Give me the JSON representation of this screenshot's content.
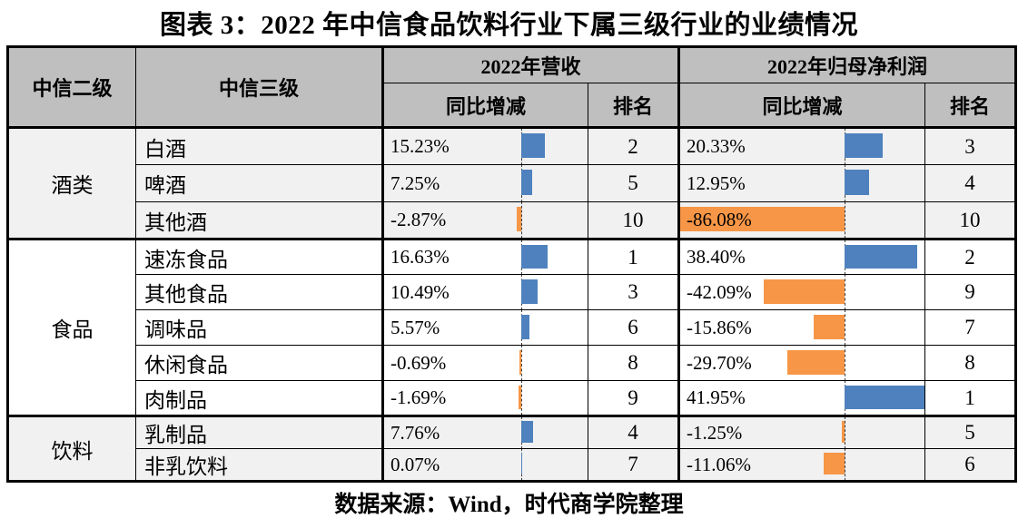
{
  "title": "图表 3：2022 年中信食品饮料行业下属三级行业的业绩情况",
  "source": "数据来源：Wind，时代商学院整理",
  "colors": {
    "positive_bar": "#4e81bd",
    "negative_bar": "#f79646",
    "header_bg": "#bfbfbf",
    "band_bg": "#f1f1f1"
  },
  "table": {
    "headers": {
      "level2": "中信二级",
      "level3": "中信三级",
      "revenue_group": "2022年营收",
      "profit_group": "2022年归母净利润",
      "yoy": "同比增减",
      "rank": "排名"
    },
    "bar_axis": {
      "axis_fraction": 0.672,
      "scale_range": 128.03
    },
    "groups": [
      {
        "name": "酒类",
        "shaded": true,
        "rows": [
          {
            "industry": "白酒",
            "revenue_yoy": "15.23%",
            "revenue_yoy_value": 15.23,
            "revenue_rank": "2",
            "profit_yoy": "20.33%",
            "profit_yoy_value": 20.33,
            "profit_rank": "3"
          },
          {
            "industry": "啤酒",
            "revenue_yoy": "7.25%",
            "revenue_yoy_value": 7.25,
            "revenue_rank": "5",
            "profit_yoy": "12.95%",
            "profit_yoy_value": 12.95,
            "profit_rank": "4"
          },
          {
            "industry": "其他酒",
            "revenue_yoy": "-2.87%",
            "revenue_yoy_value": -2.87,
            "revenue_rank": "10",
            "profit_yoy": "-86.08%",
            "profit_yoy_value": -86.08,
            "profit_rank": "10"
          }
        ]
      },
      {
        "name": "食品",
        "shaded": false,
        "rows": [
          {
            "industry": "速冻食品",
            "revenue_yoy": "16.63%",
            "revenue_yoy_value": 16.63,
            "revenue_rank": "1",
            "profit_yoy": "38.40%",
            "profit_yoy_value": 38.4,
            "profit_rank": "2"
          },
          {
            "industry": "其他食品",
            "revenue_yoy": "10.49%",
            "revenue_yoy_value": 10.49,
            "revenue_rank": "3",
            "profit_yoy": "-42.09%",
            "profit_yoy_value": -42.09,
            "profit_rank": "9"
          },
          {
            "industry": "调味品",
            "revenue_yoy": "5.57%",
            "revenue_yoy_value": 5.57,
            "revenue_rank": "6",
            "profit_yoy": "-15.86%",
            "profit_yoy_value": -15.86,
            "profit_rank": "7"
          },
          {
            "industry": "休闲食品",
            "revenue_yoy": "-0.69%",
            "revenue_yoy_value": -0.69,
            "revenue_rank": "8",
            "profit_yoy": "-29.70%",
            "profit_yoy_value": -29.7,
            "profit_rank": "8"
          },
          {
            "industry": "肉制品",
            "revenue_yoy": "-1.69%",
            "revenue_yoy_value": -1.69,
            "revenue_rank": "9",
            "profit_yoy": "41.95%",
            "profit_yoy_value": 41.95,
            "profit_rank": "1"
          }
        ]
      },
      {
        "name": "饮料",
        "shaded": true,
        "rows": [
          {
            "industry": "乳制品",
            "revenue_yoy": "7.76%",
            "revenue_yoy_value": 7.76,
            "revenue_rank": "4",
            "profit_yoy": "-1.25%",
            "profit_yoy_value": -1.25,
            "profit_rank": "5"
          },
          {
            "industry": "非乳饮料",
            "revenue_yoy": "0.07%",
            "revenue_yoy_value": 0.07,
            "revenue_rank": "7",
            "profit_yoy": "-11.06%",
            "profit_yoy_value": -11.06,
            "profit_rank": "6"
          }
        ]
      }
    ]
  },
  "chart_data": {
    "type": "table",
    "title": "图表 3：2022 年中信食品饮料行业下属三级行业的业绩情况",
    "columns": [
      "中信二级",
      "中信三级",
      "2022年营收 同比增减",
      "2022年营收 排名",
      "2022年归母净利润 同比增减",
      "2022年归母净利润 排名"
    ],
    "rows": [
      [
        "酒类",
        "白酒",
        "15.23%",
        "2",
        "20.33%",
        "3"
      ],
      [
        "酒类",
        "啤酒",
        "7.25%",
        "5",
        "12.95%",
        "4"
      ],
      [
        "酒类",
        "其他酒",
        "-2.87%",
        "10",
        "-86.08%",
        "10"
      ],
      [
        "食品",
        "速冻食品",
        "16.63%",
        "1",
        "38.40%",
        "2"
      ],
      [
        "食品",
        "其他食品",
        "10.49%",
        "3",
        "-42.09%",
        "9"
      ],
      [
        "食品",
        "调味品",
        "5.57%",
        "6",
        "-15.86%",
        "7"
      ],
      [
        "食品",
        "休闲食品",
        "-0.69%",
        "8",
        "-29.70%",
        "8"
      ],
      [
        "食品",
        "肉制品",
        "-1.69%",
        "9",
        "41.95%",
        "1"
      ],
      [
        "饮料",
        "乳制品",
        "7.76%",
        "4",
        "-1.25%",
        "5"
      ],
      [
        "饮料",
        "非乳饮料",
        "0.07%",
        "7",
        "-11.06%",
        "6"
      ]
    ]
  }
}
